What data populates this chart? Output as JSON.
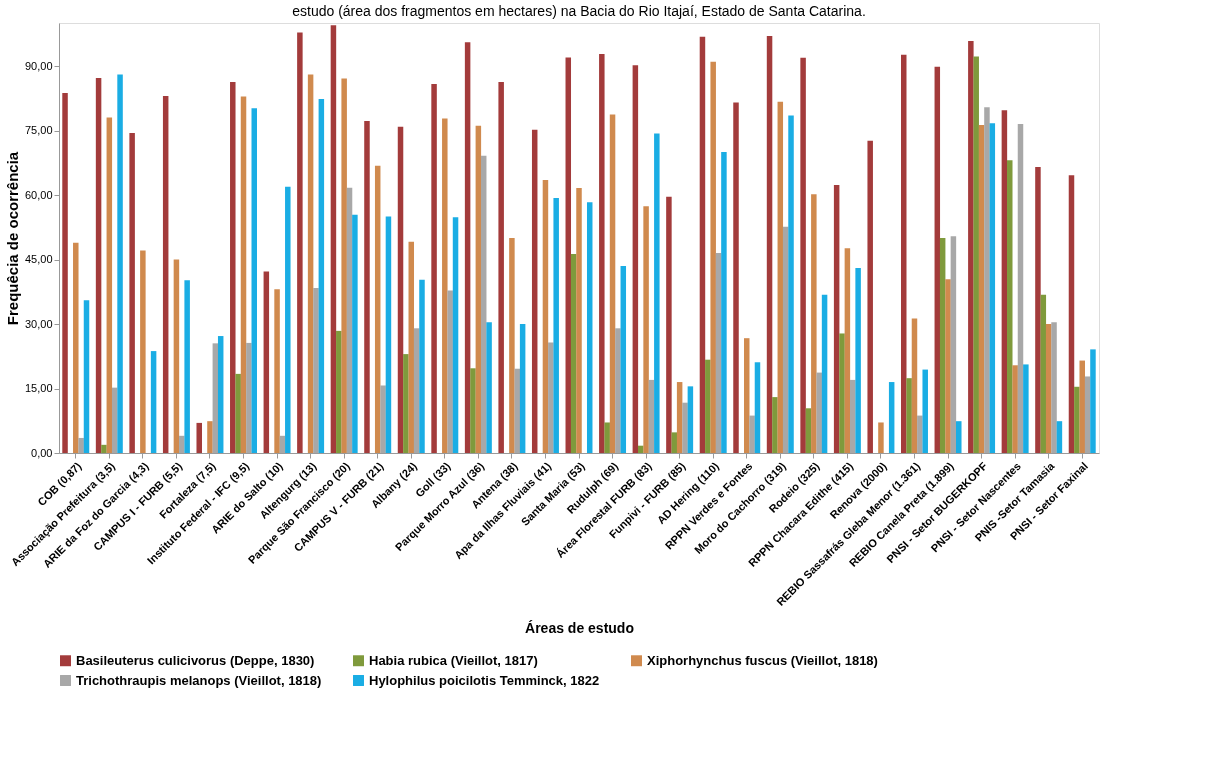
{
  "chart_data": {
    "type": "bar",
    "title": "estudo (área dos fragmentos em hectares) na Bacia do Rio Itajaí, Estado de Santa Catarina.",
    "xlabel": "Áreas de estudo",
    "ylabel": "Frequêcia de ocorrência",
    "categories": [
      "COB (0,87)",
      "Associação Prefeitura (3,5)",
      "ARIE da Foz do Garcia (4,3)",
      "CAMPUS I - FURB (5,5)",
      "Fortaleza (7,5)",
      "Instituto Federal - IFC (9,5)",
      "ARIE do Salto (10)",
      "Altengurg  (13)",
      "Parque São Francisco  (20)",
      "CAMPUS V - FURB (21)",
      "Albany (24)",
      "Goll (33)",
      "Parque Morro Azul (36)",
      "Antena (38)",
      "Apa da Ilhas Fluviais (41)",
      "Santa Maria (53)",
      "Rudulph (69)",
      "Área Florestal FURB (83)",
      "Funpivi - FURB (85)",
      "AD Hering (110)",
      "RPPN Verdes e Fontes",
      "Moro do Cachorro (319)",
      "Rodeio (325)",
      "RPPN Chacara Edithe (415)",
      "Renova (2000)",
      "REBIO Sassafrás Gleba Menor (1.361)",
      "REBIO Canela Preta (1.899)",
      "PNSI - Setor BUGERKOPF",
      "PNSI - Setor Nascentes",
      "PNIS -Setor Tamasia",
      "PNSI - Setor Faxinal"
    ],
    "series": [
      {
        "name": "Basileuterus culicivorus (Deppe, 1830)",
        "color": "#a33b3b",
        "values": [
          83.7,
          87.2,
          74.4,
          83,
          7,
          86.3,
          42.2,
          97.8,
          99.5,
          77.2,
          75.9,
          85.8,
          95.5,
          86.3,
          75.2,
          92,
          92.8,
          90.2,
          59.6,
          96.8,
          81.5,
          97,
          91.9,
          62.3,
          72.6,
          92.6,
          89.8,
          95.8,
          79.7,
          66.5,
          64.6
        ]
      },
      {
        "name": "Habia rubica (Vieillot, 1817)",
        "color": "#7f9a3c",
        "values": [
          0,
          1.9,
          0,
          0,
          0,
          18.4,
          0,
          0,
          28.4,
          0,
          23,
          0,
          19.7,
          0,
          0,
          46.3,
          7.1,
          1.7,
          4.8,
          21.7,
          0,
          13,
          10.4,
          27.8,
          0,
          17.4,
          50,
          92.2,
          68.1,
          36.8,
          15.4
        ]
      },
      {
        "name": "Xiphorhynchus fuscus (Vieillot, 1818)",
        "color": "#d08a4e",
        "values": [
          48.9,
          78,
          47.1,
          45,
          7.4,
          82.9,
          38.1,
          88,
          87.1,
          66.8,
          49.1,
          77.8,
          76.1,
          50,
          63.5,
          61.6,
          78.7,
          57.4,
          16.5,
          91,
          26.7,
          81.7,
          60.2,
          47.6,
          7.1,
          31.3,
          40.4,
          76.3,
          20.4,
          30,
          21.5
        ]
      },
      {
        "name": "Trichothraupis melanops (Vieillot, 1818)",
        "color": "#a8a8a8",
        "values": [
          3.5,
          15.2,
          null,
          4,
          25.5,
          25.6,
          4,
          38.4,
          61.7,
          15.7,
          29,
          37.8,
          69.1,
          19.6,
          25.7,
          null,
          29,
          17,
          11.7,
          46.5,
          8.7,
          52.6,
          18.7,
          17,
          null,
          8.7,
          50.4,
          80.4,
          76.5,
          30.4,
          17.8
        ]
      },
      {
        "name": "Hylophilus poicilotis Temminck, 1822",
        "color": "#1aade4",
        "values": [
          35.5,
          88,
          23.7,
          40.2,
          27.2,
          80.2,
          61.9,
          82.3,
          55.4,
          55,
          40.3,
          54.8,
          30.4,
          30,
          59.3,
          58.3,
          43.5,
          74.3,
          15.5,
          70,
          21.1,
          78.5,
          36.8,
          43,
          16.5,
          19.4,
          7.4,
          76.7,
          20.6,
          7.4,
          24.1
        ]
      }
    ],
    "ylim": [
      0,
      100
    ],
    "yticks": [
      {
        "value": 0,
        "label": "0,00"
      },
      {
        "value": 15,
        "label": "15,00"
      },
      {
        "value": 30,
        "label": "30,00"
      },
      {
        "value": 45,
        "label": "45,00"
      },
      {
        "value": 60,
        "label": "60,00"
      },
      {
        "value": 75,
        "label": "75,00"
      },
      {
        "value": 90,
        "label": "90,00"
      }
    ],
    "legend": "bottom"
  }
}
